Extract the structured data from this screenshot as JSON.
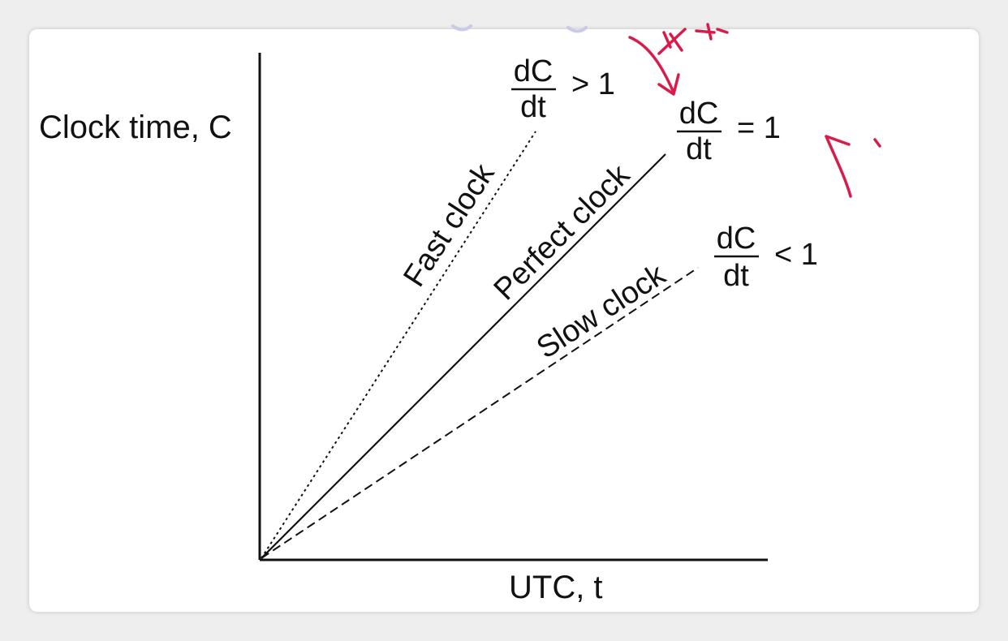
{
  "axes": {
    "y_label": "Clock time, C",
    "x_label": "UTC, t"
  },
  "lines": {
    "fast": {
      "label": "Fast clock",
      "style": "dotted"
    },
    "perfect": {
      "label": "Perfect clock",
      "style": "solid"
    },
    "slow": {
      "label": "Slow clock",
      "style": "dashed"
    }
  },
  "formulas": {
    "fast": {
      "numerator": "dC",
      "denominator": "dt",
      "relation": "> 1"
    },
    "perfect": {
      "numerator": "dC",
      "denominator": "dt",
      "relation": "= 1"
    },
    "slow": {
      "numerator": "dC",
      "denominator": "dt",
      "relation": "< 1"
    }
  },
  "colors": {
    "ink": "#111111",
    "annotation": "#d81b4a",
    "background": "#ffffff"
  }
}
